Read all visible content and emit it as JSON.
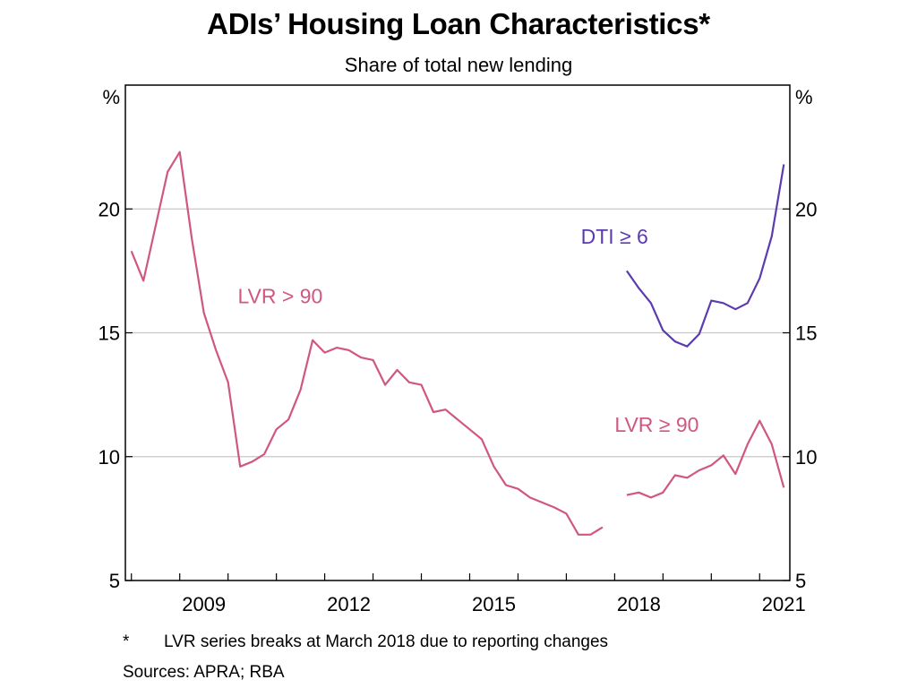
{
  "header": {
    "title": "ADIs’ Housing Loan Characteristics*",
    "subtitle": "Share of total new lending"
  },
  "footnotes": {
    "star": "*",
    "note": "LVR series breaks at March 2018 due to reporting changes",
    "sources": "Sources: APRA; RBA"
  },
  "colors": {
    "lvr": "#d0577e",
    "dti": "#5b3bb0",
    "grid": "#c8c8c8",
    "frame": "#000000"
  },
  "chart_data": {
    "type": "line",
    "title": "ADIs’ Housing Loan Characteristics*",
    "subtitle": "Share of total new lending",
    "y_unit_left": "%",
    "y_unit_right": "%",
    "ylim": [
      5,
      25
    ],
    "yticks": [
      5,
      10,
      15,
      20
    ],
    "xlim": [
      2007.875,
      2021.625
    ],
    "xticks": [
      2009,
      2012,
      2015,
      2018,
      2021
    ],
    "grid": "horizontal",
    "series": [
      {
        "name": "LVR > 90",
        "label_pos": [
          2010.2,
          16.2
        ],
        "color": "#d0577e",
        "points": [
          [
            2008.0,
            18.3
          ],
          [
            2008.25,
            17.1
          ],
          [
            2008.5,
            19.3
          ],
          [
            2008.75,
            21.5
          ],
          [
            2009.0,
            22.3
          ],
          [
            2009.25,
            18.8
          ],
          [
            2009.5,
            15.8
          ],
          [
            2009.75,
            14.3
          ],
          [
            2010.0,
            13.0
          ],
          [
            2010.25,
            9.6
          ],
          [
            2010.5,
            9.8
          ],
          [
            2010.75,
            10.1
          ],
          [
            2011.0,
            11.1
          ],
          [
            2011.25,
            11.5
          ],
          [
            2011.5,
            12.7
          ],
          [
            2011.75,
            14.7
          ],
          [
            2012.0,
            14.2
          ],
          [
            2012.25,
            14.4
          ],
          [
            2012.5,
            14.3
          ],
          [
            2012.75,
            14.0
          ],
          [
            2013.0,
            13.9
          ],
          [
            2013.25,
            12.9
          ],
          [
            2013.5,
            13.5
          ],
          [
            2013.75,
            13.0
          ],
          [
            2014.0,
            12.9
          ],
          [
            2014.25,
            11.8
          ],
          [
            2014.5,
            11.9
          ],
          [
            2014.75,
            11.5
          ],
          [
            2015.0,
            11.1
          ],
          [
            2015.25,
            10.7
          ],
          [
            2015.5,
            9.6
          ],
          [
            2015.75,
            8.85
          ],
          [
            2016.0,
            8.7
          ],
          [
            2016.25,
            8.35
          ],
          [
            2016.5,
            8.15
          ],
          [
            2016.75,
            7.95
          ],
          [
            2017.0,
            7.7
          ],
          [
            2017.25,
            6.85
          ],
          [
            2017.5,
            6.85
          ],
          [
            2017.75,
            7.15
          ]
        ]
      },
      {
        "name": "LVR ≥ 90",
        "label_pos": [
          2018.0,
          11.0
        ],
        "color": "#d0577e",
        "points": [
          [
            2018.25,
            8.45
          ],
          [
            2018.5,
            8.55
          ],
          [
            2018.75,
            8.35
          ],
          [
            2019.0,
            8.55
          ],
          [
            2019.25,
            9.25
          ],
          [
            2019.5,
            9.15
          ],
          [
            2019.75,
            9.45
          ],
          [
            2020.0,
            9.65
          ],
          [
            2020.25,
            10.05
          ],
          [
            2020.5,
            9.3
          ],
          [
            2020.75,
            10.5
          ],
          [
            2021.0,
            11.45
          ],
          [
            2021.25,
            10.5
          ],
          [
            2021.5,
            8.75
          ]
        ]
      },
      {
        "name": "DTI ≥ 6",
        "label_pos": [
          2017.3,
          18.6
        ],
        "color": "#5b3bb0",
        "points": [
          [
            2018.25,
            17.5
          ],
          [
            2018.5,
            16.8
          ],
          [
            2018.75,
            16.2
          ],
          [
            2019.0,
            15.1
          ],
          [
            2019.25,
            14.65
          ],
          [
            2019.5,
            14.45
          ],
          [
            2019.75,
            14.95
          ],
          [
            2020.0,
            16.3
          ],
          [
            2020.25,
            16.2
          ],
          [
            2020.5,
            15.95
          ],
          [
            2020.75,
            16.2
          ],
          [
            2021.0,
            17.2
          ],
          [
            2021.25,
            18.9
          ],
          [
            2021.5,
            21.8
          ]
        ]
      }
    ]
  }
}
